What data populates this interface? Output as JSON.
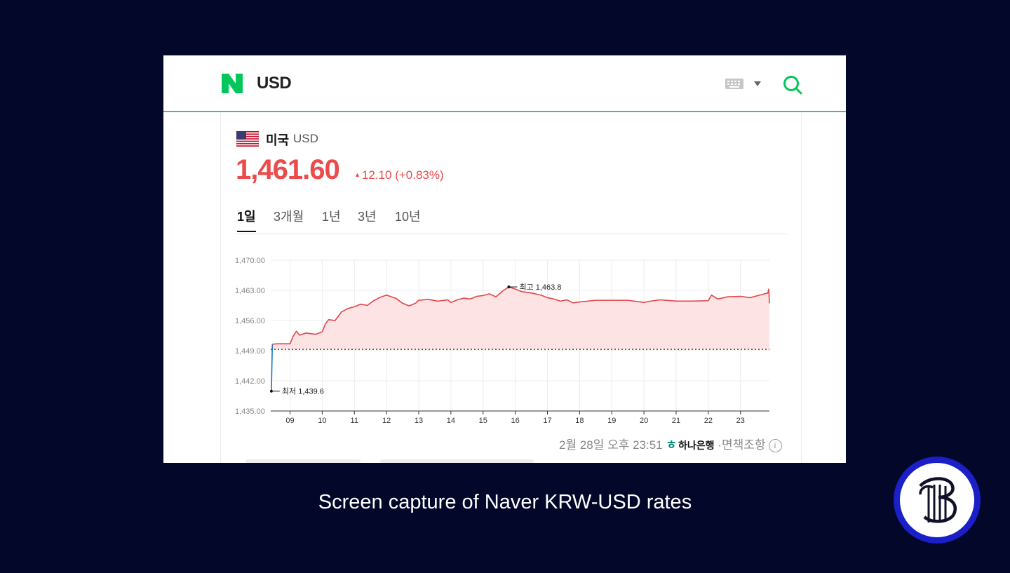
{
  "header": {
    "logo_letter": "N",
    "query": "USD",
    "brand_color": "#03c75a"
  },
  "currency": {
    "country": "미국",
    "code": "USD",
    "price": "1,461.60",
    "change_arrow": "▲",
    "change": "12.10 (+0.83%)",
    "up_color": "#eb4b4b"
  },
  "tabs": [
    {
      "label": "1일",
      "active": true
    },
    {
      "label": "3개월",
      "active": false
    },
    {
      "label": "1년",
      "active": false
    },
    {
      "label": "3년",
      "active": false
    },
    {
      "label": "10년",
      "active": false
    }
  ],
  "chart_data": {
    "type": "line",
    "y_ticks": [
      "1,470.00",
      "1,463.00",
      "1,456.00",
      "1,449.00",
      "1,442.00",
      "1,435.00"
    ],
    "ylim": [
      1435,
      1470
    ],
    "x_ticks": [
      "09",
      "10",
      "11",
      "12",
      "13",
      "14",
      "15",
      "16",
      "17",
      "18",
      "19",
      "20",
      "21",
      "22",
      "23"
    ],
    "xlim": [
      8.4,
      23.9
    ],
    "baseline": 1449.3,
    "high_label": "최고 1,463.8",
    "high_point": {
      "x": 15.8,
      "y": 1463.8
    },
    "low_label": "최저 1,439.6",
    "low_point": {
      "x": 8.42,
      "y": 1439.6
    },
    "opening_segment": {
      "x": [
        8.42,
        8.45
      ],
      "y": [
        1439.6,
        1450.5
      ],
      "color": "#1d74c4"
    },
    "series": [
      {
        "color": "#e0464a",
        "x": [
          8.45,
          8.6,
          9.0,
          9.1,
          9.2,
          9.3,
          9.5,
          9.8,
          10.0,
          10.1,
          10.2,
          10.4,
          10.6,
          10.8,
          11.0,
          11.2,
          11.4,
          11.6,
          11.8,
          12.0,
          12.3,
          12.5,
          12.7,
          12.9,
          13.0,
          13.3,
          13.6,
          13.9,
          14.0,
          14.2,
          14.4,
          14.6,
          14.8,
          15.0,
          15.2,
          15.4,
          15.6,
          15.8,
          16.0,
          16.2,
          16.5,
          16.8,
          17.0,
          17.2,
          17.4,
          17.6,
          17.8,
          18.0,
          18.5,
          19.0,
          19.5,
          20.0,
          20.2,
          20.5,
          21.0,
          21.5,
          22.0,
          22.1,
          22.3,
          22.6,
          23.0,
          23.3,
          23.6,
          23.85,
          23.88,
          23.9
        ],
        "y": [
          1450.5,
          1450.6,
          1450.6,
          1452.4,
          1453.5,
          1452.6,
          1453.1,
          1452.8,
          1453.4,
          1455.2,
          1456.2,
          1456.0,
          1458.0,
          1458.8,
          1459.2,
          1459.8,
          1459.5,
          1460.6,
          1461.4,
          1461.9,
          1461.1,
          1460.0,
          1459.4,
          1460.0,
          1460.7,
          1460.9,
          1460.5,
          1460.8,
          1460.2,
          1460.8,
          1461.2,
          1461.0,
          1461.6,
          1461.8,
          1462.2,
          1461.5,
          1462.8,
          1463.8,
          1463.3,
          1462.7,
          1462.4,
          1461.9,
          1461.3,
          1461.0,
          1460.5,
          1460.8,
          1460.1,
          1460.3,
          1460.7,
          1460.7,
          1460.7,
          1460.2,
          1460.5,
          1460.8,
          1460.5,
          1460.5,
          1460.6,
          1461.9,
          1461.0,
          1461.5,
          1461.6,
          1461.3,
          1461.9,
          1462.4,
          1463.3,
          1460.0
        ]
      }
    ],
    "fill_color": "#fde3e3"
  },
  "footer": {
    "timestamp": "2월 28일 오후 23:51",
    "bank_mark": "ㅎ",
    "bank": "하나은행",
    "separator": "·",
    "disclaimer": "면책조항",
    "info_symbol": "i"
  },
  "caption": "Screen capture of Naver KRW-USD rates"
}
